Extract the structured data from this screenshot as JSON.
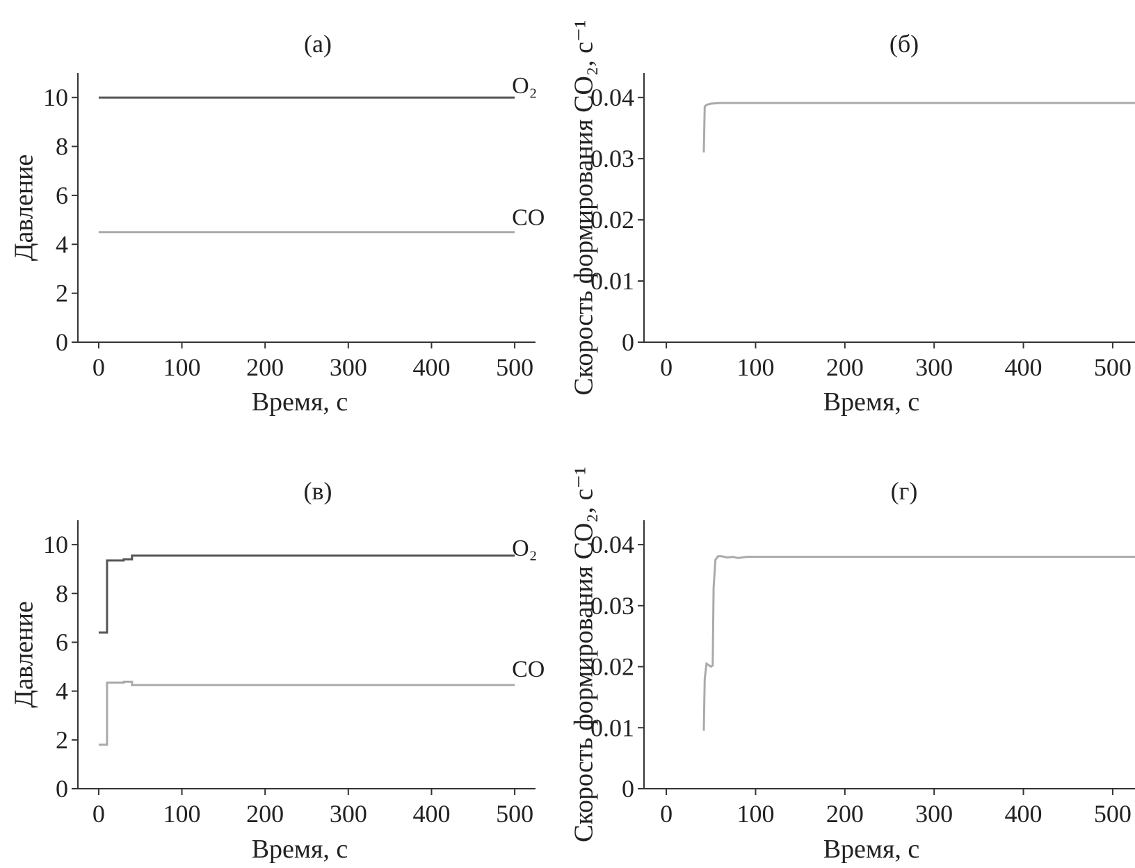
{
  "chart_data": [
    {
      "type": "line",
      "panel": "a",
      "title": "(а)",
      "xlabel": "Время, с",
      "ylabel": "Давление",
      "xlim": [
        -25,
        525
      ],
      "ylim": [
        0,
        11
      ],
      "xticks": [
        0,
        100,
        200,
        300,
        400,
        500
      ],
      "yticks": [
        0,
        2,
        4,
        6,
        8,
        10
      ],
      "xtick_labels": [
        "0",
        "100",
        "200",
        "300",
        "400",
        "500"
      ],
      "ytick_labels": [
        "0",
        "2",
        "4",
        "6",
        "8",
        "10"
      ],
      "grid": false,
      "series": [
        {
          "name": "O₂",
          "color": "#555555",
          "x": [
            0,
            500
          ],
          "y": [
            10,
            10
          ],
          "step": false
        },
        {
          "name": "CO",
          "color": "#aaaaaa",
          "x": [
            0,
            500
          ],
          "y": [
            4.5,
            4.5
          ],
          "step": false
        }
      ]
    },
    {
      "type": "line",
      "panel": "b",
      "title": "(б)",
      "xlabel": "Время, с",
      "ylabel": "Скорость формирования CO₂, с⁻¹",
      "xlim": [
        -25,
        525
      ],
      "ylim": [
        0,
        0.044
      ],
      "xticks": [
        0,
        100,
        200,
        300,
        400,
        500
      ],
      "yticks": [
        0,
        0.01,
        0.02,
        0.03,
        0.04
      ],
      "xtick_labels": [
        "0",
        "100",
        "200",
        "300",
        "400",
        "500"
      ],
      "ytick_labels": [
        "0",
        "0.01",
        "0.02",
        "0.03",
        "0.04"
      ],
      "grid": false,
      "series": [
        {
          "color": "#aaaaaa",
          "x": [
            42,
            43,
            45,
            50,
            60,
            80,
            525
          ],
          "y": [
            0.031,
            0.0385,
            0.0388,
            0.039,
            0.0391,
            0.0391,
            0.0391
          ],
          "step": false
        }
      ]
    },
    {
      "type": "line",
      "panel": "c",
      "title": "(в)",
      "xlabel": "Время, с",
      "ylabel": "Давление",
      "xlim": [
        -25,
        525
      ],
      "ylim": [
        0,
        11
      ],
      "xticks": [
        0,
        100,
        200,
        300,
        400,
        500
      ],
      "yticks": [
        0,
        2,
        4,
        6,
        8,
        10
      ],
      "xtick_labels": [
        "0",
        "100",
        "200",
        "300",
        "400",
        "500"
      ],
      "ytick_labels": [
        "0",
        "2",
        "4",
        "6",
        "8",
        "10"
      ],
      "grid": false,
      "series": [
        {
          "name": "O₂",
          "color": "#555555",
          "x": [
            0,
            10,
            10,
            30,
            30,
            40,
            40,
            50,
            500
          ],
          "y": [
            6.4,
            6.4,
            9.35,
            9.35,
            9.4,
            9.4,
            9.55,
            9.55,
            9.55
          ],
          "step": false
        },
        {
          "name": "CO",
          "color": "#aaaaaa",
          "x": [
            0,
            10,
            10,
            30,
            30,
            40,
            40,
            500
          ],
          "y": [
            1.8,
            1.8,
            4.35,
            4.35,
            4.38,
            4.38,
            4.25,
            4.25
          ],
          "step": false
        }
      ]
    },
    {
      "type": "line",
      "panel": "d",
      "title": "(г)",
      "xlabel": "Время, с",
      "ylabel": "Скорость формирования CO₂, с⁻¹",
      "xlim": [
        -25,
        525
      ],
      "ylim": [
        0,
        0.044
      ],
      "xticks": [
        0,
        100,
        200,
        300,
        400,
        500
      ],
      "yticks": [
        0,
        0.01,
        0.02,
        0.03,
        0.04
      ],
      "xtick_labels": [
        "0",
        "100",
        "200",
        "300",
        "400",
        "500"
      ],
      "ytick_labels": [
        "0",
        "0.01",
        "0.02",
        "0.03",
        "0.04"
      ],
      "grid": false,
      "series": [
        {
          "color": "#aaaaaa",
          "x": [
            42,
            43,
            45,
            47,
            50,
            52,
            53,
            55,
            58,
            62,
            68,
            75,
            80,
            90,
            525
          ],
          "y": [
            0.0095,
            0.018,
            0.0205,
            0.0203,
            0.02,
            0.0202,
            0.033,
            0.0375,
            0.0381,
            0.0381,
            0.0379,
            0.038,
            0.0378,
            0.038,
            0.038
          ],
          "step": false
        }
      ]
    }
  ]
}
